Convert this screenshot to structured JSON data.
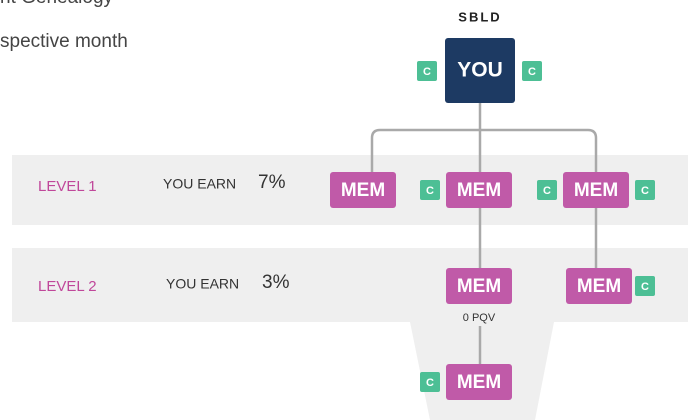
{
  "header": {
    "lines": [
      "nt Genealogy",
      "spective month"
    ]
  },
  "root": {
    "title": "SBLD",
    "label": "YOU",
    "badges": [
      "C",
      "C"
    ]
  },
  "levels": [
    {
      "label": "LEVEL 1",
      "earn": "YOU EARN",
      "rate": "7%"
    },
    {
      "label": "LEVEL 2",
      "earn": "YOU EARN",
      "rate": "3%"
    }
  ],
  "nodes": [
    {
      "label": "MEM",
      "badges": []
    },
    {
      "label": "MEM",
      "badges": [
        "C"
      ]
    },
    {
      "label": "MEM",
      "badges": [
        "C",
        "C"
      ]
    },
    {
      "label": "MEM",
      "badges": [],
      "note": "0 PQV"
    },
    {
      "label": "MEM",
      "badges": [
        "C"
      ]
    },
    {
      "label": "MEM",
      "badges": [
        "C"
      ]
    }
  ]
}
